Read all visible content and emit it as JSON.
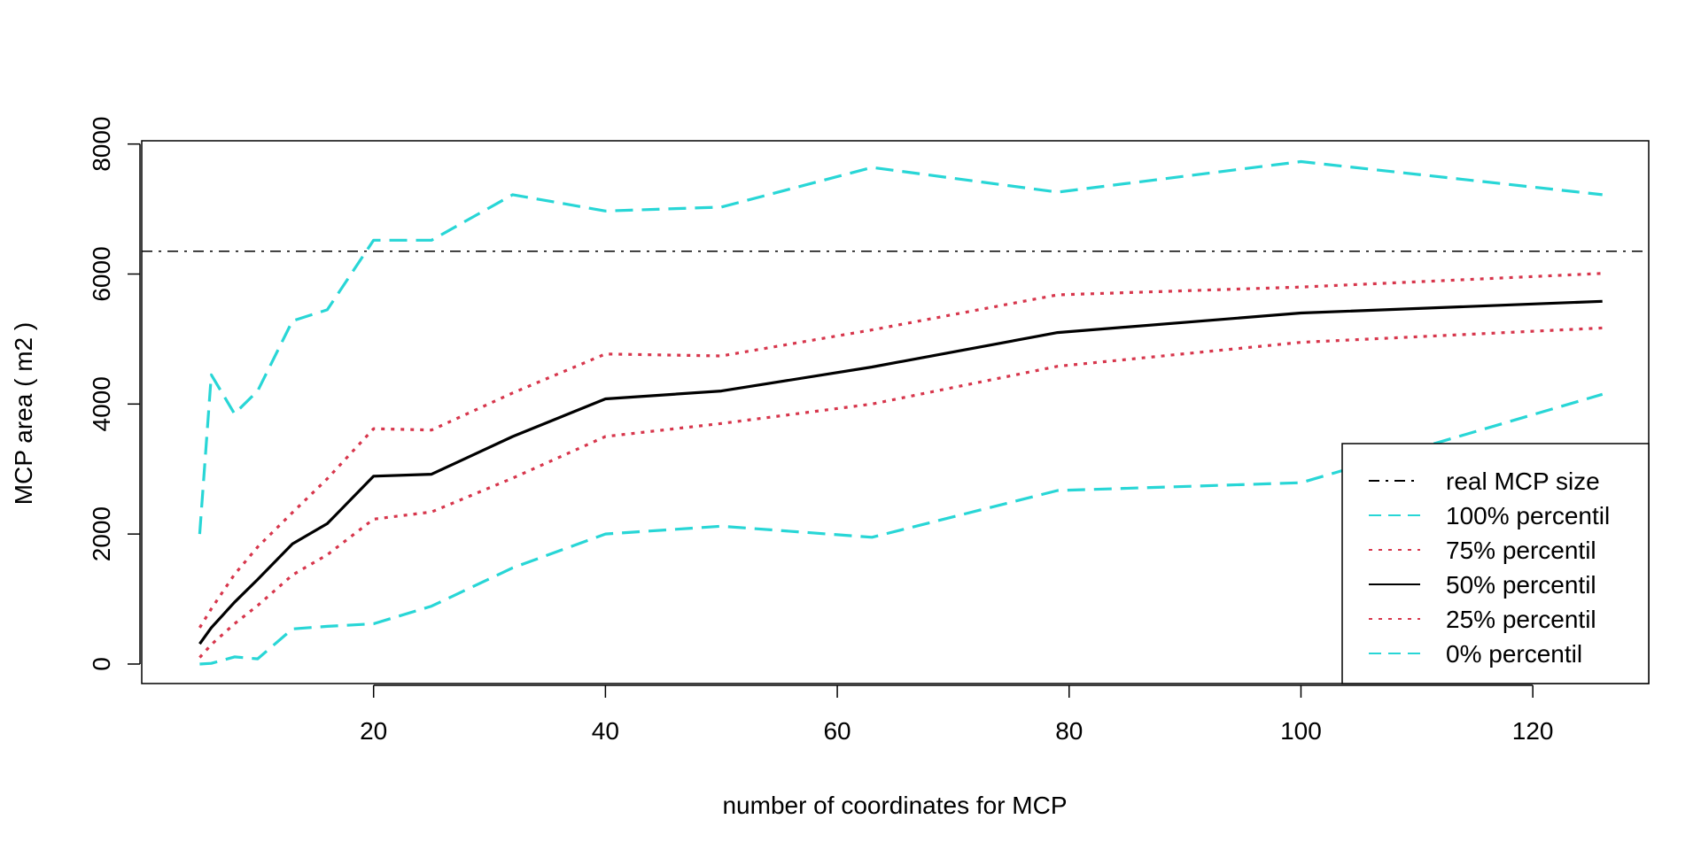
{
  "chart_data": {
    "type": "line",
    "xlabel": "number of coordinates for MCP",
    "ylabel": "MCP area ( m2 )",
    "xlim": [
      0,
      130
    ],
    "ylim": [
      -300,
      8050
    ],
    "xticks": [
      20,
      40,
      60,
      80,
      100,
      120
    ],
    "yticks": [
      0,
      2000,
      4000,
      6000,
      8000
    ],
    "legend_position": "bottom-right",
    "x": [
      5,
      6,
      8,
      10,
      13,
      16,
      20,
      25,
      32,
      40,
      50,
      63,
      79,
      100,
      126
    ],
    "series": [
      {
        "name": "real MCP size",
        "color": "#000000",
        "dash": "dashdot",
        "type": "hline",
        "value": 6350
      },
      {
        "name": "100% percentil",
        "color": "#28d6d6",
        "dash": "dashed",
        "values": [
          2000,
          4450,
          3850,
          4200,
          5280,
          5450,
          6520,
          6520,
          7220,
          6970,
          7030,
          7640,
          7260,
          7730,
          7220
        ]
      },
      {
        "name": "75% percentil",
        "color": "#d7364c",
        "dash": "dotted",
        "values": [
          560,
          850,
          1380,
          1800,
          2330,
          2850,
          3620,
          3600,
          4170,
          4770,
          4740,
          5140,
          5680,
          5800,
          6010
        ]
      },
      {
        "name": "50% percentil",
        "color": "#000000",
        "dash": "solid",
        "values": [
          310,
          560,
          950,
          1300,
          1850,
          2160,
          2890,
          2920,
          3500,
          4080,
          4200,
          4570,
          5100,
          5400,
          5580
        ]
      },
      {
        "name": "25% percentil",
        "color": "#d7364c",
        "dash": "dotted",
        "values": [
          100,
          300,
          620,
          900,
          1370,
          1680,
          2230,
          2340,
          2860,
          3500,
          3700,
          4000,
          4580,
          4950,
          5170
        ]
      },
      {
        "name": "0% percentil",
        "color": "#28d6d6",
        "dash": "dashed",
        "values": [
          0,
          10,
          110,
          80,
          540,
          580,
          620,
          890,
          1480,
          2000,
          2120,
          1950,
          2670,
          2790,
          4150
        ]
      }
    ]
  }
}
